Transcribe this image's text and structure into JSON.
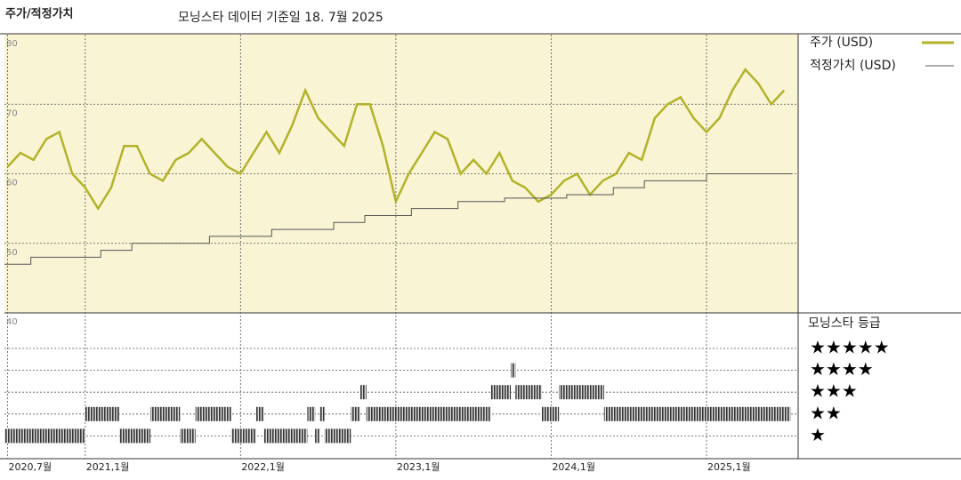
{
  "chart_data": {
    "type": "line",
    "title": "주가/적정가치",
    "subtitle": "모닝스타 데이터 기준일 18. 7월 2025",
    "rating_title": "모닝스타 등급",
    "xlim": [
      2020.48,
      2025.55
    ],
    "xticks": [
      {
        "value": 2020.5,
        "label": "2020,7월"
      },
      {
        "value": 2021,
        "label": "2021,1월"
      },
      {
        "value": 2022,
        "label": "2022,1월"
      },
      {
        "value": 2023,
        "label": "2023,1월"
      },
      {
        "value": 2024,
        "label": "2024,1월"
      },
      {
        "value": 2025,
        "label": "2025,1월"
      }
    ],
    "ylim": [
      40,
      80
    ],
    "yticks": [
      40,
      50,
      60,
      70,
      80
    ],
    "grid": true,
    "series": [
      {
        "name": "주가 (USD)",
        "color": "#b3b22a",
        "x": [
          2020.5,
          2020.583,
          2020.667,
          2020.75,
          2020.833,
          2020.917,
          2021,
          2021.083,
          2021.167,
          2021.25,
          2021.333,
          2021.417,
          2021.5,
          2021.583,
          2021.667,
          2021.75,
          2021.833,
          2021.917,
          2022,
          2022.083,
          2022.167,
          2022.25,
          2022.333,
          2022.417,
          2022.5,
          2022.583,
          2022.667,
          2022.75,
          2022.833,
          2022.917,
          2023,
          2023.083,
          2023.167,
          2023.25,
          2023.333,
          2023.417,
          2023.5,
          2023.583,
          2023.667,
          2023.75,
          2023.833,
          2023.917,
          2024,
          2024.083,
          2024.167,
          2024.25,
          2024.333,
          2024.417,
          2024.5,
          2024.583,
          2024.667,
          2024.75,
          2024.833,
          2024.917,
          2025,
          2025.083,
          2025.167,
          2025.25,
          2025.333,
          2025.417,
          2025.5
        ],
        "values": [
          61,
          63,
          62,
          65,
          66,
          60,
          58,
          55,
          58,
          64,
          64,
          60,
          59,
          62,
          63,
          65,
          63,
          61,
          60,
          63,
          66,
          63,
          67,
          72,
          68,
          66,
          64,
          70,
          70,
          64,
          56,
          60,
          63,
          66,
          65,
          60,
          62,
          60,
          63,
          59,
          58,
          56,
          57,
          59,
          60,
          57,
          59,
          60,
          63,
          62,
          68,
          70,
          71,
          68,
          66,
          68,
          72,
          75,
          73,
          70,
          72
        ]
      },
      {
        "name": "적정가치 (USD)",
        "color": "#555555",
        "step": true,
        "x": [
          2020.48,
          2020.65,
          2021.1,
          2021.3,
          2021.8,
          2022.2,
          2022.6,
          2022.8,
          2023.1,
          2023.4,
          2023.7,
          2024.1,
          2024.4,
          2024.6,
          2025,
          2025.55
        ],
        "values": [
          47,
          48,
          49,
          50,
          51,
          52,
          53,
          54,
          55,
          56,
          56.5,
          57,
          58,
          59,
          60,
          60
        ]
      }
    ],
    "rating_levels": [
      1,
      2,
      3,
      4,
      5
    ],
    "rating_labels": [
      "★",
      "★★",
      "★★★",
      "★★★★",
      "★★★★★"
    ],
    "ratings": [
      {
        "start": 2020.48,
        "end": 2021.0,
        "stars": 1
      },
      {
        "start": 2021.0,
        "end": 2021.22,
        "stars": 2
      },
      {
        "start": 2021.22,
        "end": 2021.42,
        "stars": 1
      },
      {
        "start": 2021.42,
        "end": 2021.61,
        "stars": 2
      },
      {
        "start": 2021.61,
        "end": 2021.71,
        "stars": 1
      },
      {
        "start": 2021.71,
        "end": 2021.94,
        "stars": 2
      },
      {
        "start": 2021.94,
        "end": 2022.1,
        "stars": 1
      },
      {
        "start": 2022.1,
        "end": 2022.15,
        "stars": 2
      },
      {
        "start": 2022.15,
        "end": 2022.43,
        "stars": 1
      },
      {
        "start": 2022.43,
        "end": 2022.48,
        "stars": 2
      },
      {
        "start": 2022.48,
        "end": 2022.51,
        "stars": 1
      },
      {
        "start": 2022.51,
        "end": 2022.54,
        "stars": 2
      },
      {
        "start": 2022.54,
        "end": 2022.71,
        "stars": 1
      },
      {
        "start": 2022.71,
        "end": 2022.77,
        "stars": 2
      },
      {
        "start": 2022.77,
        "end": 2022.81,
        "stars": 3
      },
      {
        "start": 2022.81,
        "end": 2023.61,
        "stars": 2
      },
      {
        "start": 2023.61,
        "end": 2023.74,
        "stars": 3
      },
      {
        "start": 2023.74,
        "end": 2023.77,
        "stars": 4
      },
      {
        "start": 2023.77,
        "end": 2023.94,
        "stars": 3
      },
      {
        "start": 2023.94,
        "end": 2024.05,
        "stars": 2
      },
      {
        "start": 2024.05,
        "end": 2024.34,
        "stars": 3
      },
      {
        "start": 2024.34,
        "end": 2025.54,
        "stars": 2
      }
    ]
  }
}
